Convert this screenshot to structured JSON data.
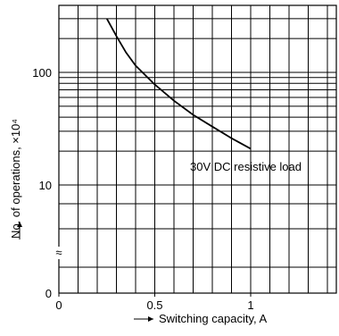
{
  "chart_data": {
    "type": "line",
    "xlabel": "Switching capacity, A",
    "ylabel": "No. of operations, ×10⁴",
    "x_scale": "linear",
    "y_scale": "log",
    "xlim": [
      0,
      1.4
    ],
    "ylim": [
      10,
      400
    ],
    "grid": true,
    "x_ticks": [
      {
        "value": 0,
        "label": "0"
      },
      {
        "value": 0.5,
        "label": "0.5"
      },
      {
        "value": 1,
        "label": "1"
      }
    ],
    "y_ticks": [
      {
        "value": 10,
        "label": "10"
      },
      {
        "value": 100,
        "label": "100"
      }
    ],
    "y_zero_label": "0",
    "axis_break_symbol": "≈",
    "series": [
      {
        "name": "30V DC resistive load",
        "x": [
          0.25,
          0.3,
          0.35,
          0.4,
          0.5,
          0.6,
          0.7,
          0.8,
          0.9,
          1.0
        ],
        "y": [
          300,
          210,
          150,
          115,
          78,
          56,
          42,
          33,
          26,
          21
        ]
      }
    ],
    "annotations": [
      {
        "text": "30V DC resistive load",
        "near_x": 1.0,
        "near_y": 21
      }
    ]
  }
}
